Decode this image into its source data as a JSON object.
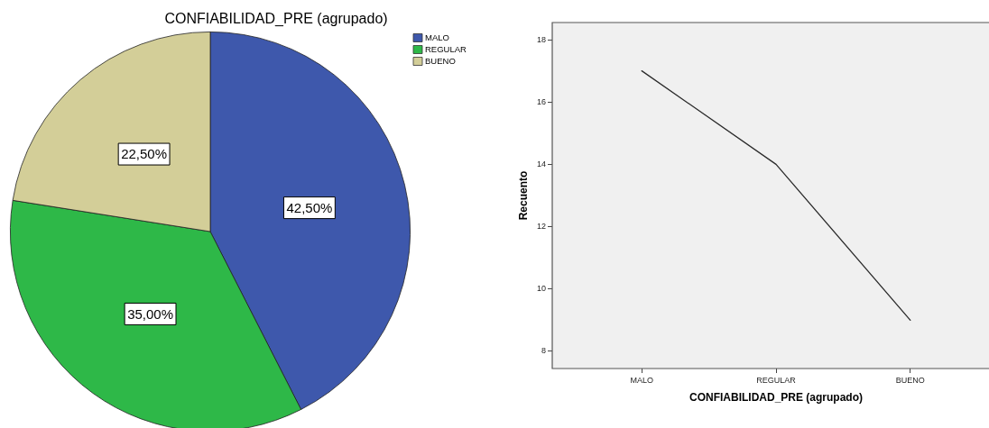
{
  "chart_data": [
    {
      "type": "pie",
      "title": "CONFIABILIDAD_PRE (agrupado)",
      "categories": [
        "MALO",
        "REGULAR",
        "BUENO"
      ],
      "values": [
        42.5,
        35,
        22.5
      ],
      "colors": [
        "#3e58ac",
        "#2eb848",
        "#d3ce98"
      ],
      "value_labels": [
        "42,50%",
        "35,00%",
        "22,50%"
      ],
      "legend": "top right"
    },
    {
      "type": "line",
      "categories": [
        "MALO",
        "REGULAR",
        "BUENO"
      ],
      "values": [
        17,
        14,
        9
      ],
      "color": "#2b2b2b",
      "xlabel": "CONFIABILIDAD_PRE (agrupado)",
      "ylabel": "Recuento",
      "ylim": [
        7.45,
        18.55
      ],
      "yticks": [
        8,
        10,
        12,
        14,
        16,
        18
      ],
      "grid": false,
      "marker": "none"
    }
  ]
}
